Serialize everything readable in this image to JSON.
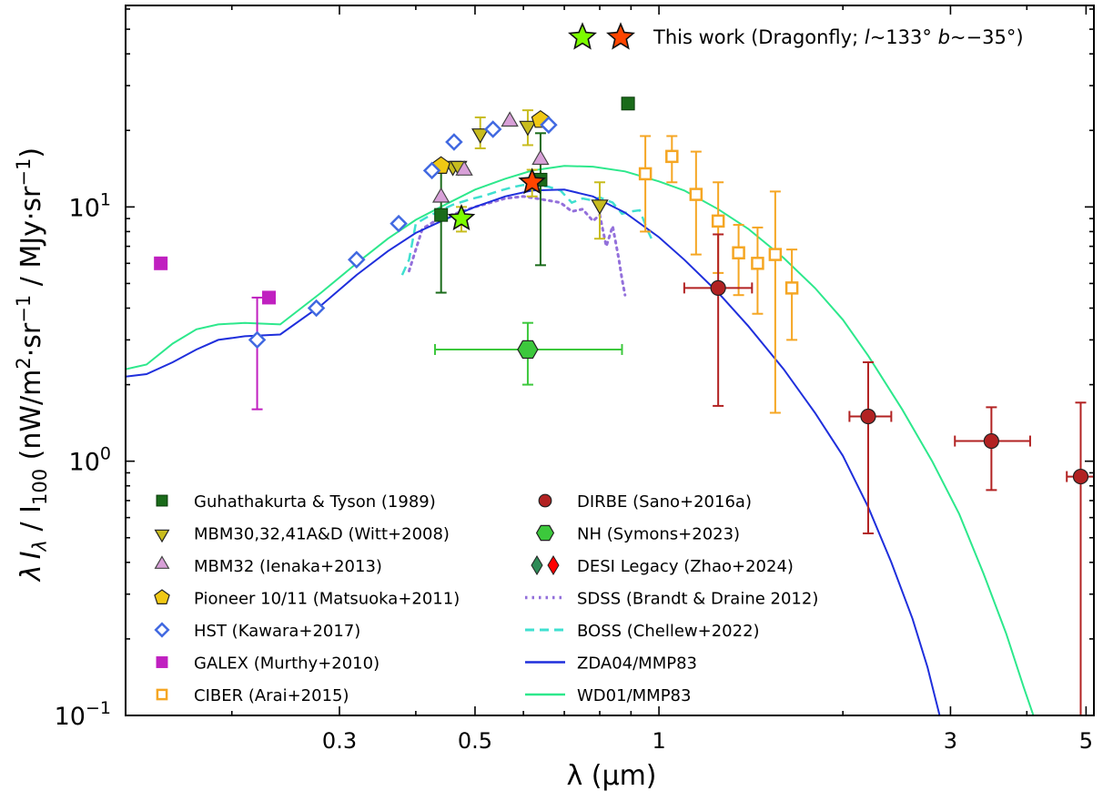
{
  "chart_data": {
    "type": "scatter",
    "xscale": "log",
    "yscale": "log",
    "xlim": [
      0.134,
      5.15
    ],
    "ylim": [
      0.1,
      62
    ],
    "xlabel": "λ (μm)",
    "ylabel": "λ I_λ / I_100 (nW/m²·sr⁻¹ / MJy·sr⁻¹)",
    "ylabel_parts": [
      "λ",
      "I",
      "λ",
      " / I",
      "100",
      " (nW/m",
      "2",
      "·sr",
      "−1",
      " / MJy·sr",
      "−1",
      ")"
    ],
    "x_ticks": [
      {
        "value": 0.3,
        "label": "0.3"
      },
      {
        "value": 0.5,
        "label": "0.5"
      },
      {
        "value": 1,
        "label": "1"
      },
      {
        "value": 3,
        "label": "3"
      },
      {
        "value": 5,
        "label": "5"
      }
    ],
    "x_minor_ticks": [
      0.2,
      0.4,
      0.6,
      0.7,
      0.8,
      0.9,
      2,
      4
    ],
    "y_ticks": [
      {
        "value": 0.1,
        "base": "10",
        "exp": "−1"
      },
      {
        "value": 1,
        "base": "10",
        "exp": "0"
      },
      {
        "value": 10,
        "base": "10",
        "exp": "1"
      }
    ],
    "grid": false,
    "legend_placement": "lower-left and lower-center, two columns",
    "top_legend": {
      "placement": "top-right",
      "text_prefix": "This work (Dragonfly; ",
      "l_symbol": "l",
      "l_value": "~133°",
      "b_symbol": "b",
      "b_value": "~−35°)"
    },
    "series": [
      {
        "name": "Guhathakurta & Tyson (1989)",
        "marker": "square",
        "color": "#1a6b1a",
        "edge": "#0a3a0a",
        "points": [
          {
            "x": 0.44,
            "y": 9.3,
            "ylo": 4.6,
            "yhi": 14.3
          },
          {
            "x": 0.64,
            "y": 12.8,
            "ylo": 5.9,
            "yhi": 19.5
          },
          {
            "x": 0.89,
            "y": 25.5
          }
        ]
      },
      {
        "name": "MBM30,32,41A&D (Witt+2008)",
        "marker": "triangle-down",
        "color": "#c8bc1e",
        "edge": "#222222",
        "points": [
          {
            "x": 0.46,
            "y": 14.6
          },
          {
            "x": 0.47,
            "y": 14.6
          },
          {
            "x": 0.51,
            "y": 19.6,
            "ylo": 17.0,
            "yhi": 22.5
          },
          {
            "x": 0.61,
            "y": 21.0,
            "ylo": 17.5,
            "yhi": 24.0
          },
          {
            "x": 0.8,
            "y": 10.3,
            "ylo": 7.5,
            "yhi": 12.5
          }
        ]
      },
      {
        "name": "MBM32 (Ienaka+2013)",
        "marker": "triangle-up",
        "color": "#d8a0d8",
        "edge": "#444444",
        "points": [
          {
            "x": 0.44,
            "y": 10.8
          },
          {
            "x": 0.48,
            "y": 13.8
          },
          {
            "x": 0.57,
            "y": 21.5
          },
          {
            "x": 0.64,
            "y": 15.2
          }
        ]
      },
      {
        "name": "Pioneer 10/11 (Matsuoka+2011)",
        "marker": "pentagon",
        "color": "#f0c814",
        "edge": "#222222",
        "points": [
          {
            "x": 0.44,
            "y": 14.5
          },
          {
            "x": 0.64,
            "y": 22.0
          }
        ]
      },
      {
        "name": "HST (Kawara+2017)",
        "marker": "diamond-open",
        "color": "#4169e1",
        "points": [
          {
            "x": 0.22,
            "y": 3.0,
            "ylo": 1.6,
            "yhi": 4.4,
            "errcolor": "#c020c0"
          },
          {
            "x": 0.275,
            "y": 4.0
          },
          {
            "x": 0.32,
            "y": 6.2
          },
          {
            "x": 0.375,
            "y": 8.6
          },
          {
            "x": 0.425,
            "y": 13.9
          },
          {
            "x": 0.462,
            "y": 18.0
          },
          {
            "x": 0.535,
            "y": 20.2
          },
          {
            "x": 0.66,
            "y": 21.0
          }
        ]
      },
      {
        "name": "GALEX (Murthy+2010)",
        "marker": "square",
        "color": "#c020c0",
        "edge": "#c020c0",
        "points": [
          {
            "x": 0.153,
            "y": 6.0
          },
          {
            "x": 0.23,
            "y": 4.4
          }
        ]
      },
      {
        "name": "CIBER (Arai+2015)",
        "marker": "square-open",
        "color": "#f5a623",
        "points": [
          {
            "x": 0.95,
            "y": 13.5,
            "ylo": 8.0,
            "yhi": 19.0
          },
          {
            "x": 1.05,
            "y": 15.8,
            "ylo": 12.5,
            "yhi": 19.0
          },
          {
            "x": 1.15,
            "y": 11.2,
            "ylo": 6.5,
            "yhi": 16.5
          },
          {
            "x": 1.25,
            "y": 8.8,
            "ylo": 5.5,
            "yhi": 12.5
          },
          {
            "x": 1.35,
            "y": 6.6,
            "ylo": 4.5,
            "yhi": 8.5
          },
          {
            "x": 1.45,
            "y": 6.0,
            "ylo": 3.8,
            "yhi": 8.3
          },
          {
            "x": 1.55,
            "y": 6.5,
            "ylo": 1.55,
            "yhi": 11.5
          },
          {
            "x": 1.65,
            "y": 4.8,
            "ylo": 3.0,
            "yhi": 6.8
          }
        ]
      },
      {
        "name": "DIRBE (Sano+2016a)",
        "marker": "circle",
        "color": "#b22222",
        "edge": "#222222",
        "points": [
          {
            "x": 1.25,
            "y": 4.8,
            "ylo": 1.65,
            "yhi": 7.8,
            "xlo": 1.1,
            "xhi": 1.42
          },
          {
            "x": 2.2,
            "y": 1.5,
            "ylo": 0.52,
            "yhi": 2.45,
            "xlo": 2.05,
            "xhi": 2.4
          },
          {
            "x": 3.5,
            "y": 1.2,
            "ylo": 0.77,
            "yhi": 1.63,
            "xlo": 3.05,
            "xhi": 4.05
          },
          {
            "x": 4.9,
            "y": 0.87,
            "ylo": 0.1,
            "yhi": 1.7,
            "xlo": 4.65,
            "xhi": 5.15
          }
        ]
      },
      {
        "name": "NH (Symons+2023)",
        "marker": "hexagon",
        "color": "#3cc83c",
        "edge": "#222222",
        "points": [
          {
            "x": 0.61,
            "y": 2.75,
            "ylo": 2.0,
            "yhi": 3.5,
            "xlo": 0.43,
            "xhi": 0.87
          }
        ]
      },
      {
        "name": "DESI Legacy (Zhao+2024)",
        "marker": "diamond-pair",
        "color": "#2e8b57",
        "color2": "#ff0000",
        "points": []
      },
      {
        "name": "This work (Dragonfly; l~133° b~−35°)",
        "marker": "star",
        "color": "#7cfc00",
        "edge": "#111111",
        "points": [
          {
            "x": 0.475,
            "y": 9.0,
            "ylo": 8.0,
            "yhi": 10.0
          }
        ]
      },
      {
        "name": "This work (Dragonfly; l~133° b~−35°)",
        "marker": "star",
        "color": "#ff4500",
        "edge": "#111111",
        "points": [
          {
            "x": 0.62,
            "y": 12.5,
            "ylo": 11.0,
            "yhi": 14.0
          }
        ]
      }
    ],
    "lines": [
      {
        "name": "SDSS (Brandt & Draine 2012)",
        "style": "dotted",
        "color": "#9370db",
        "points": [
          [
            0.39,
            5.6
          ],
          [
            0.4,
            6.8
          ],
          [
            0.41,
            8.2
          ],
          [
            0.43,
            8.8
          ],
          [
            0.45,
            9.2
          ],
          [
            0.47,
            9.5
          ],
          [
            0.5,
            10.0
          ],
          [
            0.53,
            10.4
          ],
          [
            0.56,
            10.8
          ],
          [
            0.6,
            11.0
          ],
          [
            0.63,
            10.8
          ],
          [
            0.66,
            10.6
          ],
          [
            0.69,
            10.4
          ],
          [
            0.72,
            9.6
          ],
          [
            0.75,
            9.8
          ],
          [
            0.78,
            8.8
          ],
          [
            0.8,
            9.3
          ],
          [
            0.82,
            7.0
          ],
          [
            0.84,
            8.4
          ],
          [
            0.86,
            6.2
          ],
          [
            0.87,
            5.2
          ],
          [
            0.88,
            4.5
          ]
        ]
      },
      {
        "name": "BOSS (Chellew+2022)",
        "style": "dashed",
        "color": "#40e0d0",
        "points": [
          [
            0.38,
            5.4
          ],
          [
            0.39,
            6.2
          ],
          [
            0.4,
            8.6
          ],
          [
            0.42,
            9.2
          ],
          [
            0.44,
            9.7
          ],
          [
            0.46,
            10.2
          ],
          [
            0.49,
            10.7
          ],
          [
            0.52,
            11.1
          ],
          [
            0.55,
            11.6
          ],
          [
            0.58,
            12.0
          ],
          [
            0.6,
            12.2
          ],
          [
            0.63,
            12.2
          ],
          [
            0.66,
            12.0
          ],
          [
            0.69,
            11.6
          ],
          [
            0.72,
            10.4
          ],
          [
            0.75,
            10.8
          ],
          [
            0.78,
            10.6
          ],
          [
            0.8,
            10.9
          ],
          [
            0.84,
            10.4
          ],
          [
            0.87,
            9.4
          ],
          [
            0.9,
            9.6
          ],
          [
            0.93,
            9.7
          ],
          [
            0.96,
            8.0
          ],
          [
            0.98,
            7.2
          ]
        ]
      },
      {
        "name": "ZDA04/MMP83",
        "style": "solid",
        "color": "#1f2fdc",
        "points": [
          [
            0.134,
            2.15
          ],
          [
            0.145,
            2.2
          ],
          [
            0.16,
            2.45
          ],
          [
            0.175,
            2.75
          ],
          [
            0.19,
            3.0
          ],
          [
            0.21,
            3.1
          ],
          [
            0.24,
            3.15
          ],
          [
            0.28,
            4.1
          ],
          [
            0.32,
            5.4
          ],
          [
            0.36,
            6.7
          ],
          [
            0.4,
            7.9
          ],
          [
            0.45,
            9.0
          ],
          [
            0.5,
            10.0
          ],
          [
            0.56,
            11.0
          ],
          [
            0.62,
            11.6
          ],
          [
            0.7,
            11.7
          ],
          [
            0.78,
            11.0
          ],
          [
            0.88,
            9.5
          ],
          [
            1.0,
            7.6
          ],
          [
            1.1,
            6.2
          ],
          [
            1.25,
            4.6
          ],
          [
            1.4,
            3.4
          ],
          [
            1.6,
            2.3
          ],
          [
            1.8,
            1.55
          ],
          [
            2.0,
            1.05
          ],
          [
            2.2,
            0.66
          ],
          [
            2.4,
            0.4
          ],
          [
            2.6,
            0.24
          ],
          [
            2.75,
            0.155
          ],
          [
            2.88,
            0.1
          ]
        ]
      },
      {
        "name": "WD01/MMP83",
        "style": "solid",
        "color": "#2de88c",
        "points": [
          [
            0.134,
            2.3
          ],
          [
            0.145,
            2.4
          ],
          [
            0.16,
            2.9
          ],
          [
            0.175,
            3.3
          ],
          [
            0.19,
            3.45
          ],
          [
            0.21,
            3.5
          ],
          [
            0.24,
            3.45
          ],
          [
            0.28,
            4.6
          ],
          [
            0.32,
            6.0
          ],
          [
            0.36,
            7.5
          ],
          [
            0.4,
            8.9
          ],
          [
            0.45,
            10.3
          ],
          [
            0.5,
            11.7
          ],
          [
            0.56,
            12.9
          ],
          [
            0.62,
            13.9
          ],
          [
            0.7,
            14.5
          ],
          [
            0.78,
            14.4
          ],
          [
            0.88,
            13.8
          ],
          [
            1.0,
            12.6
          ],
          [
            1.1,
            11.6
          ],
          [
            1.25,
            9.8
          ],
          [
            1.4,
            8.2
          ],
          [
            1.6,
            6.3
          ],
          [
            1.8,
            4.8
          ],
          [
            2.0,
            3.6
          ],
          [
            2.2,
            2.6
          ],
          [
            2.5,
            1.6
          ],
          [
            2.8,
            1.0
          ],
          [
            3.1,
            0.62
          ],
          [
            3.4,
            0.36
          ],
          [
            3.7,
            0.21
          ],
          [
            3.95,
            0.13
          ],
          [
            4.1,
            0.1
          ]
        ]
      }
    ]
  }
}
